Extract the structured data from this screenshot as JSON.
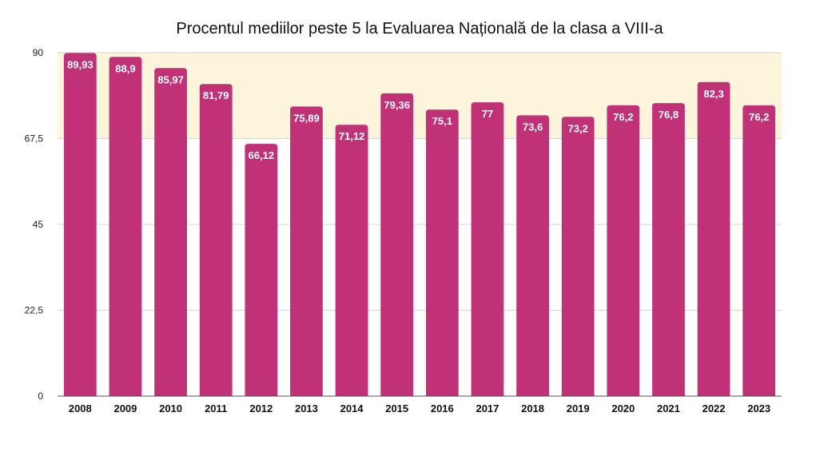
{
  "chart_data": {
    "type": "bar",
    "title": "Procentul mediilor peste 5 la Evaluarea Națională de la clasa a VIII-a",
    "xlabel": "",
    "ylabel": "",
    "categories": [
      "2008",
      "2009",
      "2010",
      "2011",
      "2012",
      "2013",
      "2014",
      "2015",
      "2016",
      "2017",
      "2018",
      "2019",
      "2020",
      "2021",
      "2022",
      "2023"
    ],
    "values": [
      89.93,
      88.9,
      85.97,
      81.79,
      66.12,
      75.89,
      71.12,
      79.36,
      75.1,
      77,
      73.6,
      73.2,
      76.2,
      76.8,
      82.3,
      76.2
    ],
    "value_labels": [
      "89,93",
      "88,9",
      "85,97",
      "81,79",
      "66,12",
      "75,89",
      "71,12",
      "79,36",
      "75,1",
      "77",
      "73,6",
      "73,2",
      "76,2",
      "76,8",
      "82,3",
      "76,2"
    ],
    "yticks": [
      0,
      22.5,
      45,
      67.5,
      90
    ],
    "ytick_labels": [
      "0",
      "22,5",
      "45",
      "67,5",
      "90"
    ],
    "ylim": [
      0,
      90
    ],
    "grid": true,
    "colors": {
      "bar": "#c03178",
      "highlight_band": "#fdf4dc",
      "gridline": "#d4d4d4",
      "axis": "#555555"
    }
  }
}
